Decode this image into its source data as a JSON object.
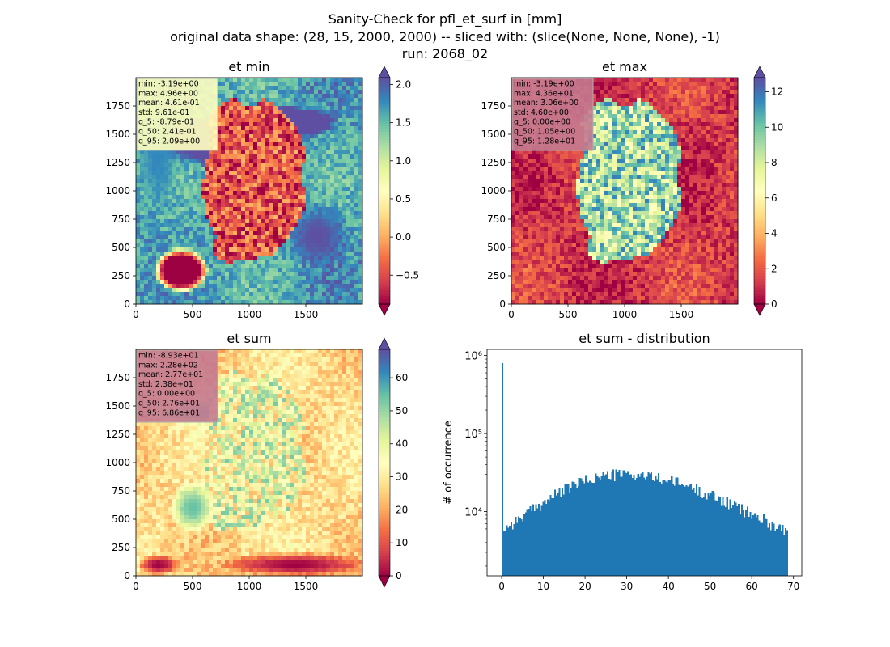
{
  "figure": {
    "title_lines": [
      "Sanity-Check for pfl_et_surf in [mm]",
      "original data shape: (28, 15, 2000, 2000) -- sliced with: (slice(None, None, None), -1)",
      "run: 2068_02"
    ]
  },
  "colormap": {
    "name": "Spectral",
    "stops": [
      "#9e0142",
      "#d53e4f",
      "#f46d43",
      "#fdae61",
      "#fee08b",
      "#ffffbf",
      "#e6f598",
      "#abdda4",
      "#66c2a5",
      "#3288bd",
      "#5e4fa2"
    ]
  },
  "chart_data": [
    {
      "type": "heatmap",
      "title": "et min",
      "xlim": [
        0,
        2000
      ],
      "ylim": [
        0,
        2000
      ],
      "xticks": [
        0,
        500,
        1000,
        1500
      ],
      "yticks": [
        0,
        250,
        500,
        750,
        1000,
        1250,
        1500,
        1750
      ],
      "colorbar": {
        "vmin": -0.879,
        "vmax": 2.09,
        "ticks": [
          -0.5,
          0.0,
          0.5,
          1.0,
          1.5,
          2.0
        ],
        "tick_labels": [
          "−0.5",
          "0.0",
          "0.5",
          "1.0",
          "1.5",
          "2.0"
        ],
        "extend": "both"
      },
      "stats": [
        "min: -3.19e+00",
        "max: 4.96e+00",
        "mean: 4.61e-01",
        "std: 9.61e-01",
        "q_5: -8.79e-01",
        "q_50: 2.41e-01",
        "q_95: 2.09e+00"
      ],
      "stats_box_color": "#ffffbf",
      "field": {
        "background": 0.85,
        "land": 0.15,
        "land_noise": 0.35,
        "blobs": [
          [
            0.35,
            0.28,
            0.25,
            0.12,
            1.2
          ],
          [
            0.6,
            0.2,
            0.3,
            0.08,
            1.4
          ],
          [
            0.1,
            0.35,
            0.1,
            0.25,
            0.9
          ],
          [
            0.8,
            0.7,
            0.15,
            0.15,
            1.0
          ],
          [
            0.2,
            0.85,
            0.12,
            0.1,
            -0.8
          ]
        ]
      }
    },
    {
      "type": "heatmap",
      "title": "et max",
      "xlim": [
        0,
        2000
      ],
      "ylim": [
        0,
        2000
      ],
      "xticks": [
        0,
        500,
        1000,
        1500
      ],
      "yticks": [
        0,
        250,
        500,
        750,
        1000,
        1250,
        1500,
        1750
      ],
      "colorbar": {
        "vmin": 0.0,
        "vmax": 12.8,
        "ticks": [
          0,
          2,
          4,
          6,
          8,
          10,
          12
        ],
        "tick_labels": [
          "0",
          "2",
          "4",
          "6",
          "8",
          "10",
          "12"
        ],
        "extend": "both"
      },
      "stats": [
        "min: -3.19e+00",
        "max: 4.36e+01",
        "mean: 3.06e+00",
        "std: 4.60e+00",
        "q_5: 0.00e+00",
        "q_50: 1.05e+00",
        "q_95: 1.28e+01"
      ],
      "stats_box_color": "#c47a90",
      "field": {
        "background": 0.1,
        "land": 0.7,
        "land_noise": 0.45,
        "blobs": [
          [
            0.35,
            0.28,
            0.3,
            0.1,
            0.15
          ],
          [
            0.5,
            0.55,
            0.1,
            0.1,
            0.5
          ]
        ]
      }
    },
    {
      "type": "heatmap",
      "title": "et sum",
      "xlim": [
        0,
        2000
      ],
      "ylim": [
        0,
        2000
      ],
      "xticks": [
        0,
        500,
        1000,
        1500
      ],
      "yticks": [
        0,
        250,
        500,
        750,
        1000,
        1250,
        1500,
        1750
      ],
      "colorbar": {
        "vmin": 0.0,
        "vmax": 68.6,
        "ticks": [
          0,
          10,
          20,
          30,
          40,
          50,
          60
        ],
        "tick_labels": [
          "0",
          "10",
          "20",
          "30",
          "40",
          "50",
          "60"
        ],
        "extend": "both"
      },
      "stats": [
        "min: -8.93e+01",
        "max: 2.28e+02",
        "mean: 2.77e+01",
        "std: 2.38e+01",
        "q_5: 0.00e+00",
        "q_50: 2.76e+01",
        "q_95: 6.86e+01"
      ],
      "stats_box_color": "#c47a90",
      "field": {
        "background": 0.4,
        "land": 0.55,
        "land_noise": 0.45,
        "blobs": [
          [
            0.35,
            0.28,
            0.3,
            0.06,
            0.85
          ],
          [
            0.25,
            0.7,
            0.1,
            0.12,
            0.8
          ],
          [
            0.55,
            0.5,
            0.05,
            0.2,
            0.85
          ],
          [
            0.7,
            0.95,
            0.35,
            0.06,
            0.0
          ],
          [
            0.1,
            0.95,
            0.1,
            0.05,
            0.0
          ]
        ]
      }
    },
    {
      "type": "bar",
      "title": "et sum - distribution",
      "xlabel": "",
      "ylabel": "# of occurrence",
      "xlim": [
        -3.5,
        72
      ],
      "ylim": [
        1500,
        1200000
      ],
      "yscale": "log",
      "xticks": [
        0,
        10,
        20,
        30,
        40,
        50,
        60,
        70
      ],
      "yticks": [
        10000,
        100000,
        1000000
      ],
      "ytick_labels": [
        "10⁴",
        "10⁵",
        "10⁶"
      ],
      "color": "#1f77b4",
      "bins": {
        "start": 0,
        "end": 68.6,
        "count": 196
      },
      "spike": {
        "bin": 0,
        "value": 800000
      },
      "curve": {
        "peak_x": 28.5,
        "peak": 30000,
        "sigma_left": 13,
        "sigma_right": 18,
        "floor": 3500,
        "jitter": 0.18
      }
    }
  ]
}
